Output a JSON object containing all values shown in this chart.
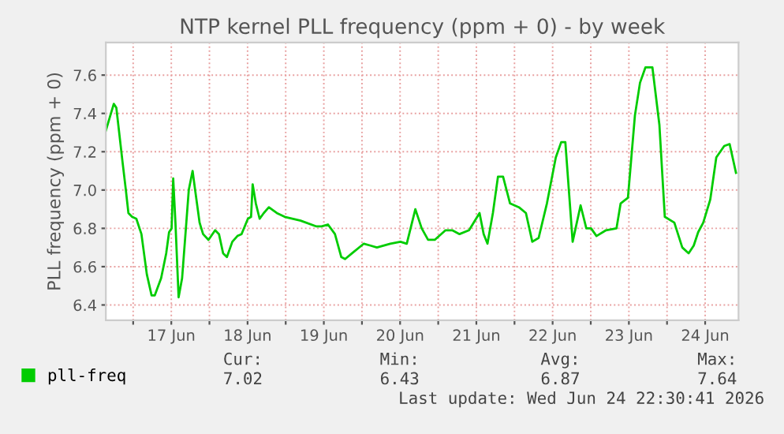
{
  "chart_data": {
    "type": "line",
    "title": "NTP kernel PLL frequency (ppm + 0) - by week",
    "ylabel": "PLL frequency (ppm + 0)",
    "x": [
      "2026-06-16T15:24",
      "2026-06-16T17:54",
      "2026-06-16T18:42",
      "2026-06-16T20:42",
      "2026-06-16T21:42",
      "2026-06-16T22:30",
      "2026-06-16T23:40",
      "2026-06-17T01:00",
      "2026-06-17T02:36",
      "2026-06-17T04:18",
      "2026-06-17T05:48",
      "2026-06-17T06:48",
      "2026-06-17T08:48",
      "2026-06-17T10:24",
      "2026-06-17T11:18",
      "2026-06-17T12:06",
      "2026-06-17T12:36",
      "2026-06-17T13:18",
      "2026-06-17T14:18",
      "2026-06-17T15:24",
      "2026-06-17T16:30",
      "2026-06-17T17:30",
      "2026-06-17T18:42",
      "2026-06-17T19:30",
      "2026-06-17T20:54",
      "2026-06-17T22:00",
      "2026-06-17T23:42",
      "2026-06-18T01:48",
      "2026-06-18T03:00",
      "2026-06-18T04:18",
      "2026-06-18T05:30",
      "2026-06-18T07:12",
      "2026-06-18T08:48",
      "2026-06-18T10:06",
      "2026-06-18T12:06",
      "2026-06-18T13:06",
      "2026-06-18T13:36",
      "2026-06-18T14:36",
      "2026-06-18T15:48",
      "2026-06-18T17:06",
      "2026-06-18T18:42",
      "2026-06-18T21:12",
      "2026-06-18T23:42",
      "2026-06-19T04:42",
      "2026-06-19T09:42",
      "2026-06-19T11:18",
      "2026-06-19T13:18",
      "2026-06-19T15:30",
      "2026-06-19T17:30",
      "2026-06-19T18:42",
      "2026-06-19T20:54",
      "2026-06-20T00:36",
      "2026-06-20T02:42",
      "2026-06-20T04:42",
      "2026-06-20T08:54",
      "2026-06-20T12:06",
      "2026-06-20T14:06",
      "2026-06-20T16:48",
      "2026-06-20T18:48",
      "2026-06-20T20:48",
      "2026-06-20T22:54",
      "2026-06-21T02:18",
      "2026-06-21T04:24",
      "2026-06-21T06:42",
      "2026-06-21T09:42",
      "2026-06-21T13:00",
      "2026-06-21T14:18",
      "2026-06-21T15:30",
      "2026-06-21T17:12",
      "2026-06-21T18:48",
      "2026-06-21T20:24",
      "2026-06-21T22:36",
      "2026-06-22T01:24",
      "2026-06-22T03:36",
      "2026-06-22T05:36",
      "2026-06-22T07:36",
      "2026-06-22T10:12",
      "2026-06-22T13:00",
      "2026-06-22T14:42",
      "2026-06-22T16:00",
      "2026-06-22T18:18",
      "2026-06-22T20:48",
      "2026-06-22T22:36",
      "2026-06-23T00:06",
      "2026-06-23T01:48",
      "2026-06-23T04:48",
      "2026-06-23T08:06",
      "2026-06-23T09:24",
      "2026-06-23T11:42",
      "2026-06-23T13:54",
      "2026-06-23T15:30",
      "2026-06-23T17:12",
      "2026-06-23T19:24",
      "2026-06-23T21:36",
      "2026-06-23T23:18",
      "2026-06-24T02:18",
      "2026-06-24T04:48",
      "2026-06-24T06:48",
      "2026-06-24T08:24",
      "2026-06-24T09:48",
      "2026-06-24T11:24",
      "2026-06-24T13:36",
      "2026-06-24T15:30",
      "2026-06-24T18:00",
      "2026-06-24T19:42",
      "2026-06-24T21:42"
    ],
    "series": [
      {
        "name": "pll-freq",
        "color": "#00cc00",
        "values": [
          7.31,
          7.45,
          7.43,
          7.14,
          7.0,
          6.88,
          6.86,
          6.85,
          6.77,
          6.56,
          6.45,
          6.45,
          6.54,
          6.67,
          6.78,
          6.8,
          7.06,
          6.83,
          6.44,
          6.54,
          6.78,
          7.0,
          7.1,
          7.0,
          6.83,
          6.77,
          6.74,
          6.79,
          6.77,
          6.67,
          6.65,
          6.73,
          6.76,
          6.77,
          6.85,
          6.86,
          7.03,
          6.93,
          6.85,
          6.88,
          6.91,
          6.88,
          6.86,
          6.84,
          6.81,
          6.81,
          6.82,
          6.77,
          6.65,
          6.64,
          6.67,
          6.72,
          6.71,
          6.7,
          6.72,
          6.73,
          6.72,
          6.9,
          6.8,
          6.74,
          6.74,
          6.79,
          6.79,
          6.77,
          6.79,
          6.88,
          6.77,
          6.72,
          6.88,
          7.07,
          7.07,
          6.93,
          6.91,
          6.88,
          6.73,
          6.75,
          6.93,
          7.17,
          7.25,
          7.25,
          6.73,
          6.92,
          6.8,
          6.8,
          6.76,
          6.79,
          6.8,
          6.93,
          6.96,
          7.39,
          7.56,
          7.64,
          7.64,
          7.34,
          6.86,
          6.83,
          6.7,
          6.67,
          6.71,
          6.78,
          6.83,
          6.95,
          7.17,
          7.23,
          7.24,
          7.09
        ]
      }
    ],
    "xlim": [
      "2026-06-16T15:24",
      "2026-06-24T22:30"
    ],
    "xticks": [
      {
        "value": "2026-06-17T00:00",
        "label": null
      },
      {
        "value": "2026-06-17T12:00",
        "label": "17 Jun"
      },
      {
        "value": "2026-06-18T00:00",
        "label": null
      },
      {
        "value": "2026-06-18T12:00",
        "label": "18 Jun"
      },
      {
        "value": "2026-06-19T00:00",
        "label": null
      },
      {
        "value": "2026-06-19T12:00",
        "label": "19 Jun"
      },
      {
        "value": "2026-06-20T00:00",
        "label": null
      },
      {
        "value": "2026-06-20T12:00",
        "label": "20 Jun"
      },
      {
        "value": "2026-06-21T00:00",
        "label": null
      },
      {
        "value": "2026-06-21T12:00",
        "label": "21 Jun"
      },
      {
        "value": "2026-06-22T00:00",
        "label": null
      },
      {
        "value": "2026-06-22T12:00",
        "label": "22 Jun"
      },
      {
        "value": "2026-06-23T00:00",
        "label": null
      },
      {
        "value": "2026-06-23T12:00",
        "label": "23 Jun"
      },
      {
        "value": "2026-06-24T00:00",
        "label": null
      },
      {
        "value": "2026-06-24T12:00",
        "label": "24 Jun"
      }
    ],
    "ylim": [
      6.32,
      7.77
    ],
    "yticks": [
      6.4,
      6.6,
      6.8,
      {
        "value": 7.0,
        "label": "7.0"
      },
      7.2,
      7.4,
      7.6
    ],
    "grid": true,
    "legend": "bottom left",
    "marker": "none",
    "line_style": "solid",
    "annotations": [
      "Cur:",
      "Min:",
      "Avg:",
      "Max:",
      "7.02",
      "6.43",
      "6.87",
      "7.64",
      "Last update: Wed Jun 24 22:30:41 2026"
    ]
  }
}
